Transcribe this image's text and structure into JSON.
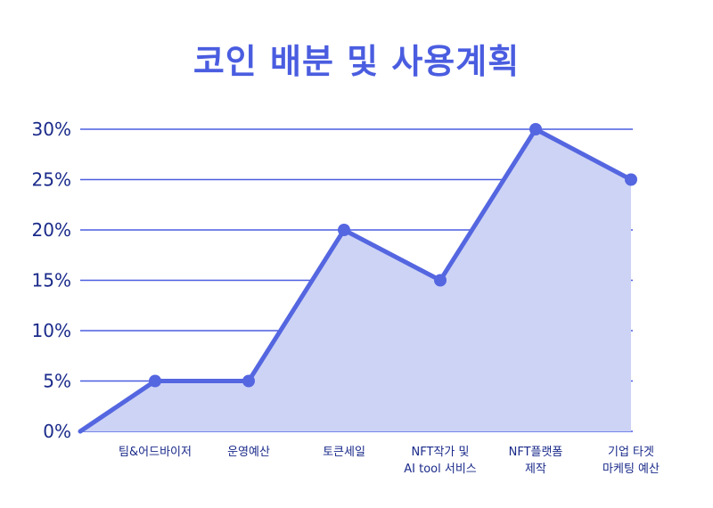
{
  "chart_data": {
    "type": "area",
    "title": "코인 배분 및 사용계획",
    "categories": [
      "",
      "팀&어드바이저",
      "운영예산",
      "토큰세일",
      "NFT작가 및\nAI tool 서비스",
      "NFT플랫폼\n제작",
      "기업 타겟\n마케팅 예산"
    ],
    "values": [
      0,
      5,
      5,
      20,
      15,
      30,
      25
    ],
    "y_ticks": [
      "0%",
      "5%",
      "10%",
      "15%",
      "20%",
      "25%",
      "30%"
    ],
    "ylim": [
      0,
      30
    ],
    "grid": true,
    "colors": {
      "line": "#5466e0",
      "fill": "#cdd3f5",
      "grid": "#4a5de0",
      "title": "#4a5de0",
      "text": "#1a2a8a"
    }
  }
}
